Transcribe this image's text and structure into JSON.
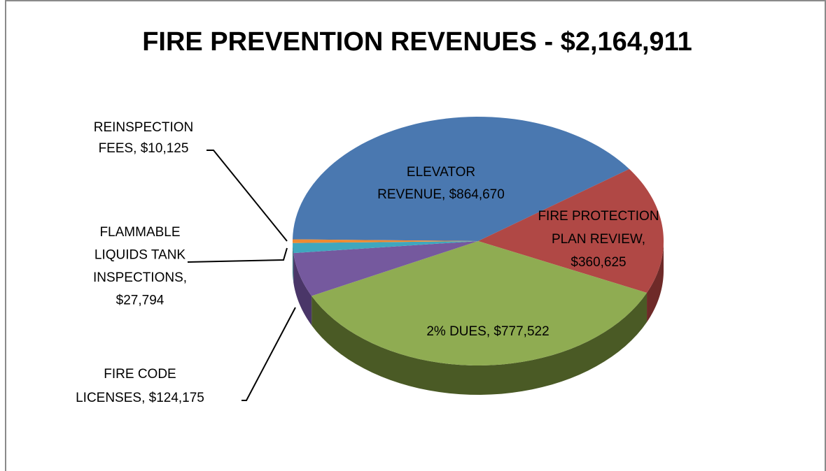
{
  "chart_data": {
    "type": "pie",
    "title": "FIRE PREVENTION REVENUES - $2,164,911",
    "labels": [
      [
        "ELEVATOR",
        "REVENUE, $864,670"
      ],
      [
        "FIRE PROTECTION",
        "PLAN REVIEW,",
        "$360,625"
      ],
      [
        "2% DUES, $777,522"
      ],
      [
        "FIRE CODE",
        "LICENSES, $124,175"
      ],
      [
        "FLAMMABLE",
        "LIQUIDS TANK",
        "INSPECTIONS,",
        "$27,794"
      ],
      [
        "REINSPECTION",
        "FEES, $10,125"
      ]
    ],
    "values": [
      864670,
      360625,
      777522,
      124175,
      27794,
      10125
    ],
    "colors": [
      "#4a78b0",
      "#b04845",
      "#8fac52",
      "#75599e",
      "#3fa7be",
      "#f08a30"
    ],
    "side_colors": [
      "#2f4f78",
      "#6e2a28",
      "#4a5a25",
      "#4a3668",
      "#266a78",
      "#9a5418"
    ]
  }
}
